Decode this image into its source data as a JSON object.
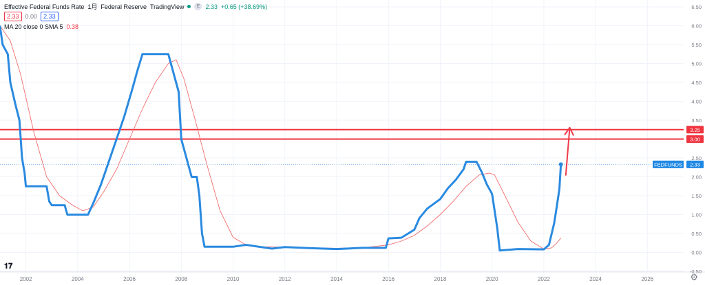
{
  "header": {
    "title": "Effective Federal Funds Rate",
    "interval": "1月",
    "source": "Federal Reserve",
    "provider": "TradingView",
    "e_label": "E",
    "ohlc_values": [
      "2.33",
      "0.00",
      "2.33"
    ],
    "last_price": "2.33",
    "change": "+0.65 (+38.69%)",
    "ma_label": "MA 20 close 0 SMA 5",
    "ma_value": "0.38"
  },
  "tags": {
    "symbol": "FEDFUNDS",
    "symbol_value": "2.33",
    "line1": "3.25",
    "line2": "3.00"
  },
  "colors": {
    "series": "#2a8ae0",
    "ma": "#f26d6d",
    "hline": "#f0343f",
    "arrow": "#ef3a47",
    "grid": "#f0f3fa",
    "axis_text": "#787b86"
  },
  "chart_data": {
    "type": "line",
    "xlim": [
      2001.0,
      2027.4
    ],
    "ylim": [
      -0.5,
      6.5
    ],
    "x_ticks": [
      "2002",
      "2004",
      "2006",
      "2008",
      "2010",
      "2012",
      "2014",
      "2016",
      "2018",
      "2020",
      "2022",
      "2024",
      "2026"
    ],
    "y_ticks": [
      "6.50",
      "6.00",
      "5.50",
      "5.00",
      "4.50",
      "4.00",
      "3.50",
      "3.00",
      "2.50",
      "2.00",
      "1.50",
      "1.00",
      "0.50",
      "0.00",
      "-0.50"
    ],
    "series": [
      {
        "name": "FEDFUNDS",
        "points": [
          [
            2001.0,
            5.98
          ],
          [
            2001.1,
            5.5
          ],
          [
            2001.3,
            5.25
          ],
          [
            2001.4,
            4.5
          ],
          [
            2001.5,
            4.2
          ],
          [
            2001.6,
            3.9
          ],
          [
            2001.75,
            3.5
          ],
          [
            2001.85,
            2.5
          ],
          [
            2001.95,
            2.1
          ],
          [
            2002.0,
            1.75
          ],
          [
            2002.5,
            1.75
          ],
          [
            2002.8,
            1.75
          ],
          [
            2002.9,
            1.35
          ],
          [
            2003.0,
            1.25
          ],
          [
            2003.5,
            1.25
          ],
          [
            2003.6,
            1.0
          ],
          [
            2004.0,
            1.0
          ],
          [
            2004.4,
            1.0
          ],
          [
            2004.6,
            1.3
          ],
          [
            2004.9,
            1.8
          ],
          [
            2005.2,
            2.4
          ],
          [
            2005.5,
            3.0
          ],
          [
            2005.8,
            3.6
          ],
          [
            2006.1,
            4.3
          ],
          [
            2006.3,
            4.8
          ],
          [
            2006.5,
            5.25
          ],
          [
            2007.0,
            5.25
          ],
          [
            2007.5,
            5.25
          ],
          [
            2007.7,
            4.75
          ],
          [
            2007.9,
            4.25
          ],
          [
            2008.0,
            3.0
          ],
          [
            2008.2,
            2.5
          ],
          [
            2008.4,
            2.0
          ],
          [
            2008.6,
            2.0
          ],
          [
            2008.7,
            1.5
          ],
          [
            2008.8,
            0.5
          ],
          [
            2008.9,
            0.15
          ],
          [
            2009.5,
            0.15
          ],
          [
            2010.0,
            0.15
          ],
          [
            2010.5,
            0.2
          ],
          [
            2011.0,
            0.15
          ],
          [
            2011.5,
            0.1
          ],
          [
            2012.0,
            0.14
          ],
          [
            2013.0,
            0.11
          ],
          [
            2014.0,
            0.09
          ],
          [
            2015.0,
            0.12
          ],
          [
            2015.9,
            0.12
          ],
          [
            2016.0,
            0.37
          ],
          [
            2016.5,
            0.39
          ],
          [
            2017.0,
            0.6
          ],
          [
            2017.2,
            0.91
          ],
          [
            2017.5,
            1.16
          ],
          [
            2018.0,
            1.41
          ],
          [
            2018.3,
            1.7
          ],
          [
            2018.6,
            1.92
          ],
          [
            2018.9,
            2.2
          ],
          [
            2019.0,
            2.4
          ],
          [
            2019.4,
            2.4
          ],
          [
            2019.6,
            2.13
          ],
          [
            2019.8,
            1.8
          ],
          [
            2020.0,
            1.55
          ],
          [
            2020.2,
            0.65
          ],
          [
            2020.3,
            0.05
          ],
          [
            2021.0,
            0.09
          ],
          [
            2022.0,
            0.08
          ],
          [
            2022.2,
            0.2
          ],
          [
            2022.4,
            0.77
          ],
          [
            2022.5,
            1.21
          ],
          [
            2022.6,
            1.68
          ],
          [
            2022.66,
            2.33
          ]
        ]
      },
      {
        "name": "MA 20 close 0 SMA 5",
        "points": [
          [
            2001.0,
            6.0
          ],
          [
            2001.4,
            5.6
          ],
          [
            2001.8,
            4.7
          ],
          [
            2002.3,
            3.2
          ],
          [
            2002.8,
            2.0
          ],
          [
            2003.3,
            1.5
          ],
          [
            2003.8,
            1.25
          ],
          [
            2004.2,
            1.1
          ],
          [
            2004.6,
            1.2
          ],
          [
            2005.0,
            1.6
          ],
          [
            2005.5,
            2.2
          ],
          [
            2006.0,
            3.0
          ],
          [
            2006.5,
            3.8
          ],
          [
            2007.0,
            4.5
          ],
          [
            2007.5,
            5.0
          ],
          [
            2007.8,
            5.1
          ],
          [
            2008.1,
            4.6
          ],
          [
            2008.5,
            3.6
          ],
          [
            2009.0,
            2.3
          ],
          [
            2009.5,
            1.1
          ],
          [
            2010.0,
            0.4
          ],
          [
            2010.5,
            0.2
          ],
          [
            2011.0,
            0.15
          ],
          [
            2012.0,
            0.14
          ],
          [
            2013.0,
            0.12
          ],
          [
            2014.0,
            0.11
          ],
          [
            2015.0,
            0.12
          ],
          [
            2016.0,
            0.2
          ],
          [
            2016.5,
            0.3
          ],
          [
            2017.0,
            0.45
          ],
          [
            2017.5,
            0.7
          ],
          [
            2018.0,
            1.0
          ],
          [
            2018.5,
            1.35
          ],
          [
            2019.0,
            1.75
          ],
          [
            2019.5,
            2.05
          ],
          [
            2019.9,
            2.1
          ],
          [
            2020.1,
            2.05
          ],
          [
            2020.5,
            1.5
          ],
          [
            2021.0,
            0.8
          ],
          [
            2021.5,
            0.3
          ],
          [
            2022.0,
            0.09
          ],
          [
            2022.3,
            0.12
          ],
          [
            2022.5,
            0.25
          ],
          [
            2022.66,
            0.38
          ]
        ]
      }
    ],
    "horizontal_lines": [
      3.25,
      3.0
    ],
    "annotation": {
      "type": "arrow",
      "x_from": 2022.85,
      "y_from": 2.05,
      "x_to": 2023.0,
      "y_to": 3.3
    },
    "grid": true
  }
}
